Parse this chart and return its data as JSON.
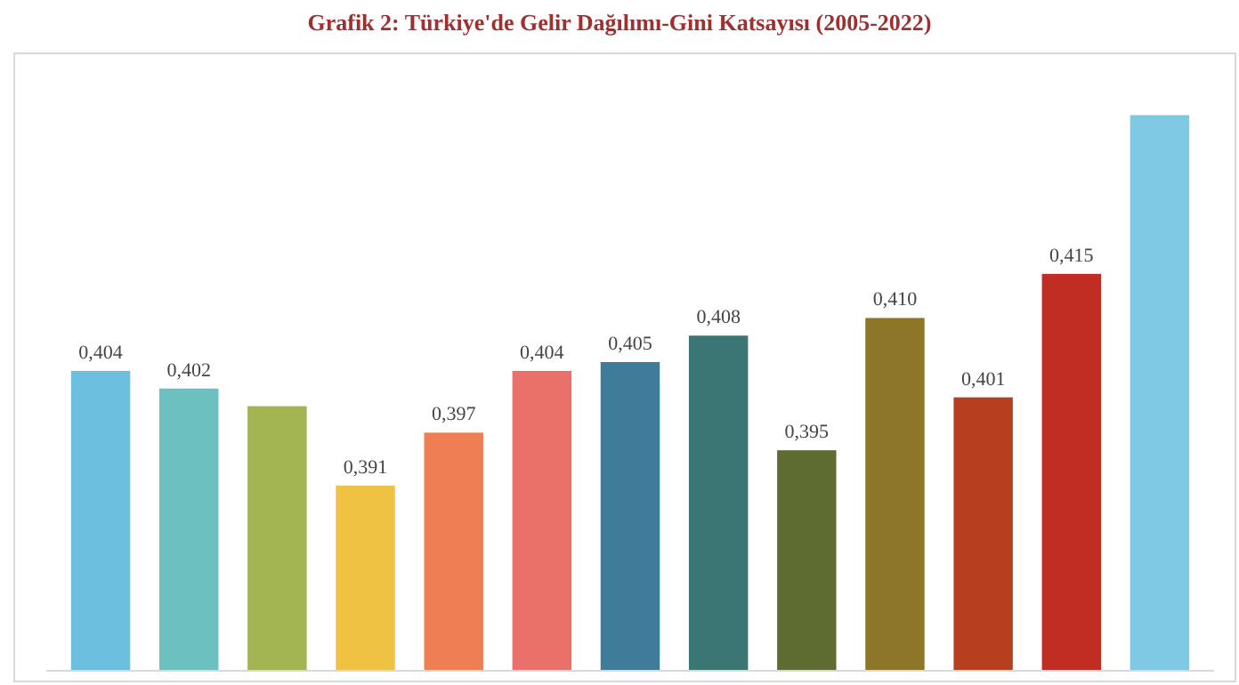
{
  "chart_data": {
    "type": "bar",
    "title": "Grafik 2: Türkiye'de Gelir Dağılımı-Gini Katsayısı (2005-2022)",
    "categories": [
      null,
      null,
      null,
      null,
      null,
      null,
      null,
      null,
      null,
      null,
      null,
      null,
      null
    ],
    "values": [
      0.404,
      0.402,
      0.4,
      0.391,
      0.397,
      0.404,
      0.405,
      0.408,
      0.395,
      0.41,
      0.401,
      0.415,
      0.433
    ],
    "colors": [
      "#6cbfdf",
      "#6cc0c0",
      "#a3b552",
      "#f0c243",
      "#ef7e54",
      "#e97169",
      "#3e7c99",
      "#3c7674",
      "#5e6b31",
      "#8e7628",
      "#b53f1f",
      "#c12d22",
      "#80c9e4"
    ],
    "value_labels": [
      "0,404",
      "0,402",
      null,
      "0,391",
      "0,397",
      "0,404",
      "0,405",
      "0,408",
      "0,395",
      "0,410",
      "0,401",
      "0,415",
      null
    ],
    "ylim": [
      0.37,
      0.44
    ]
  }
}
